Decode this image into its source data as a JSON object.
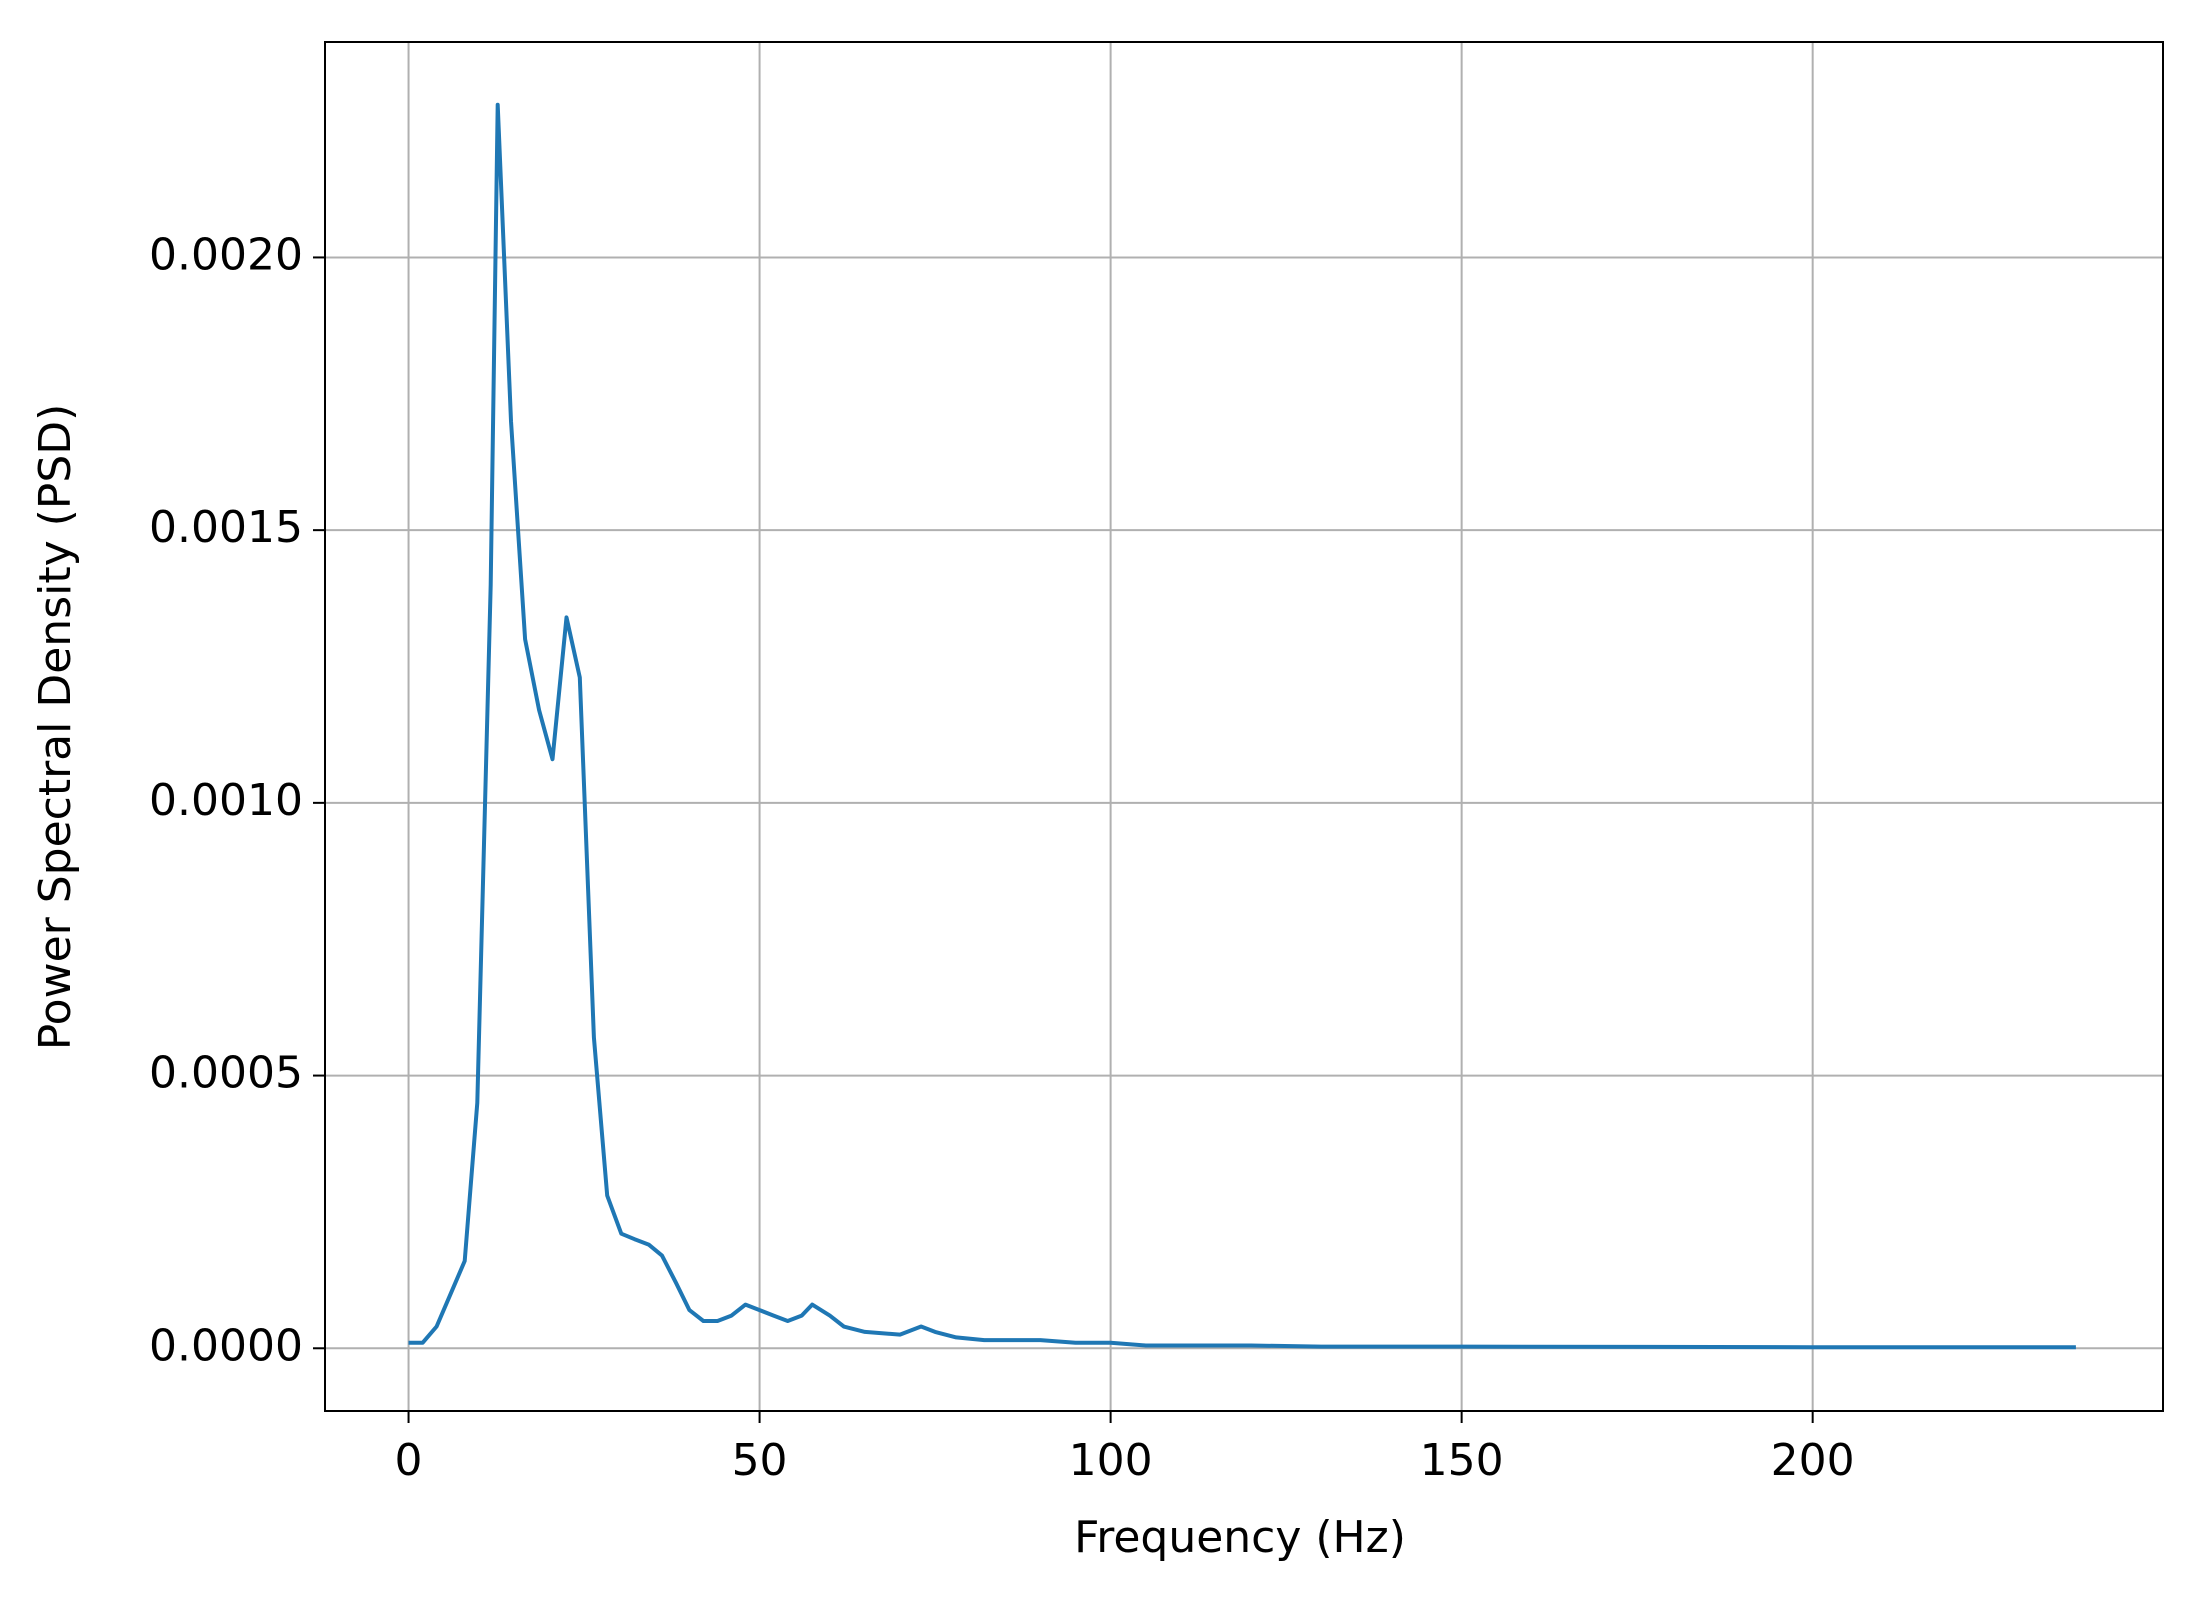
{
  "chart_data": {
    "type": "line",
    "x_label": "Frequency (Hz)",
    "y_label": "Power Spectral Density (PSD)",
    "x": [
      0,
      2,
      4,
      6,
      8,
      9.8,
      11.7,
      12.7,
      14.6,
      16.6,
      18.6,
      20.5,
      22.5,
      24.4,
      26.4,
      28.3,
      30.3,
      32.2,
      34.2,
      36.1,
      38.1,
      40,
      42,
      44,
      46,
      48,
      50,
      52,
      54,
      56,
      57.5,
      60,
      62,
      65,
      70,
      73,
      75,
      78,
      82,
      90,
      95,
      100,
      105,
      120,
      130,
      150,
      200,
      237.5
    ],
    "series": [
      {
        "name": "PSD",
        "color": "#1f77b4",
        "values": [
          1e-05,
          1e-05,
          4e-05,
          0.0001,
          0.00016,
          0.00045,
          0.0014,
          0.00228,
          0.0017,
          0.0013,
          0.00117,
          0.00108,
          0.00134,
          0.00123,
          0.00057,
          0.00028,
          0.00021,
          0.0002,
          0.00019,
          0.00017,
          0.00012,
          7e-05,
          5e-05,
          5e-05,
          6e-05,
          8e-05,
          7e-05,
          6e-05,
          5e-05,
          6e-05,
          8e-05,
          6e-05,
          4e-05,
          3e-05,
          2.5e-05,
          4e-05,
          3e-05,
          2e-05,
          1.5e-05,
          1.5e-05,
          1e-05,
          1e-05,
          5e-06,
          5e-06,
          3e-06,
          3e-06,
          2e-06,
          2e-06
        ]
      }
    ],
    "xlim": [
      -11.9,
      249.9
    ],
    "ylim": [
      -0.000115,
      0.002395
    ],
    "xticks": [
      0,
      50,
      100,
      150,
      200
    ],
    "yticks": [
      {
        "value": 0,
        "label": "0.0000"
      },
      {
        "value": 0.0005,
        "label": "0.0005"
      },
      {
        "value": 0.001,
        "label": "0.0010"
      },
      {
        "value": 0.0015,
        "label": "0.0015"
      },
      {
        "value": 0.002,
        "label": "0.0020"
      }
    ],
    "grid": true
  }
}
